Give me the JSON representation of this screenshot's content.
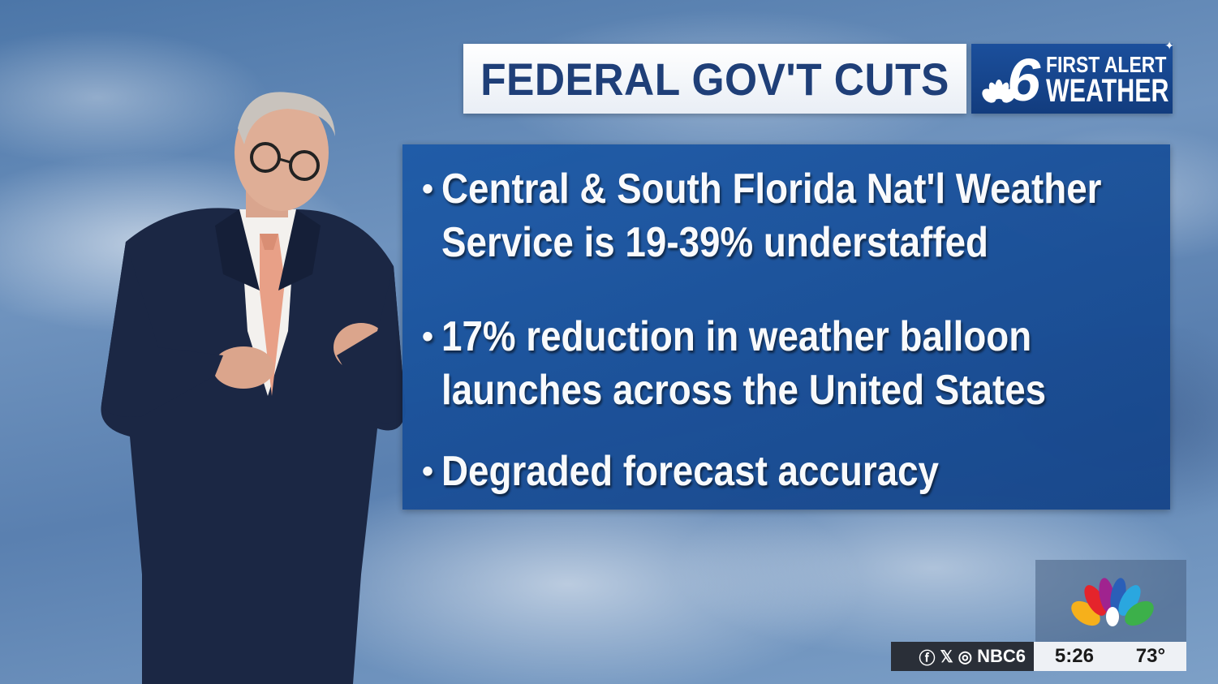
{
  "title": "FEDERAL GOV'T CUTS",
  "brand": {
    "channel_number": "6",
    "line1": "FIRST ALERT",
    "line2": "WEATHER"
  },
  "bullets": [
    {
      "text": "Central & South Florida Nat'l Weather\nService is 19-39% understaffed"
    },
    {
      "text": "17% reduction in weather balloon\nlaunches across the United States"
    },
    {
      "text": "Degraded forecast accuracy"
    }
  ],
  "bullet_marker": "•",
  "ticker": {
    "social_handle": "NBC6",
    "social_icons": [
      "facebook-icon",
      "x-icon",
      "instagram-icon"
    ],
    "time": "5:26",
    "temperature": "73°"
  },
  "colors": {
    "title_text": "#1f3f78",
    "panel": "#1a4f97",
    "brand_box": "#123c7e"
  }
}
